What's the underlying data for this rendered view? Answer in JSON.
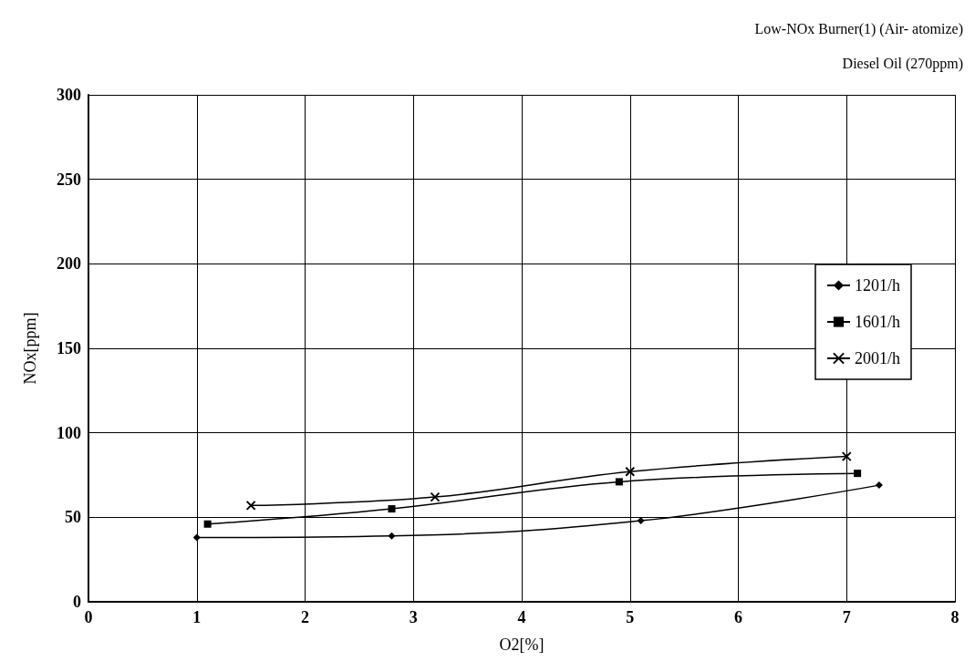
{
  "chart_data": {
    "type": "line",
    "title": "Low-NOx Burner(1) (Air- atomize)",
    "subtitle": "Diesel Oil (270ppm)",
    "xlabel": "O2[%]",
    "ylabel": "NOx[ppm]",
    "series": [
      {
        "name": "1201/h",
        "color": "#000000",
        "marker": "diamond",
        "x": [
          1,
          2.8,
          5.1,
          7.3
        ],
        "values": [
          38,
          39,
          48,
          69
        ]
      },
      {
        "name": "1601/h",
        "color": "#000000",
        "marker": "square",
        "x": [
          1.1,
          2.8,
          4.9,
          7.1
        ],
        "values": [
          46,
          55,
          71,
          76
        ]
      },
      {
        "name": "2001/h",
        "color": "#000000",
        "marker": "cross",
        "x": [
          1.5,
          3.2,
          5,
          7
        ],
        "values": [
          57,
          62,
          77,
          86
        ]
      }
    ],
    "xlim": [
      0,
      8
    ],
    "xticks": [
      0,
      1,
      2,
      3,
      4,
      5,
      6,
      7,
      8
    ],
    "ylim": [
      0,
      300
    ],
    "yticks": [
      0,
      50,
      100,
      150,
      200,
      250,
      300
    ],
    "grid": true,
    "legend": "right",
    "line_style": "solid"
  }
}
